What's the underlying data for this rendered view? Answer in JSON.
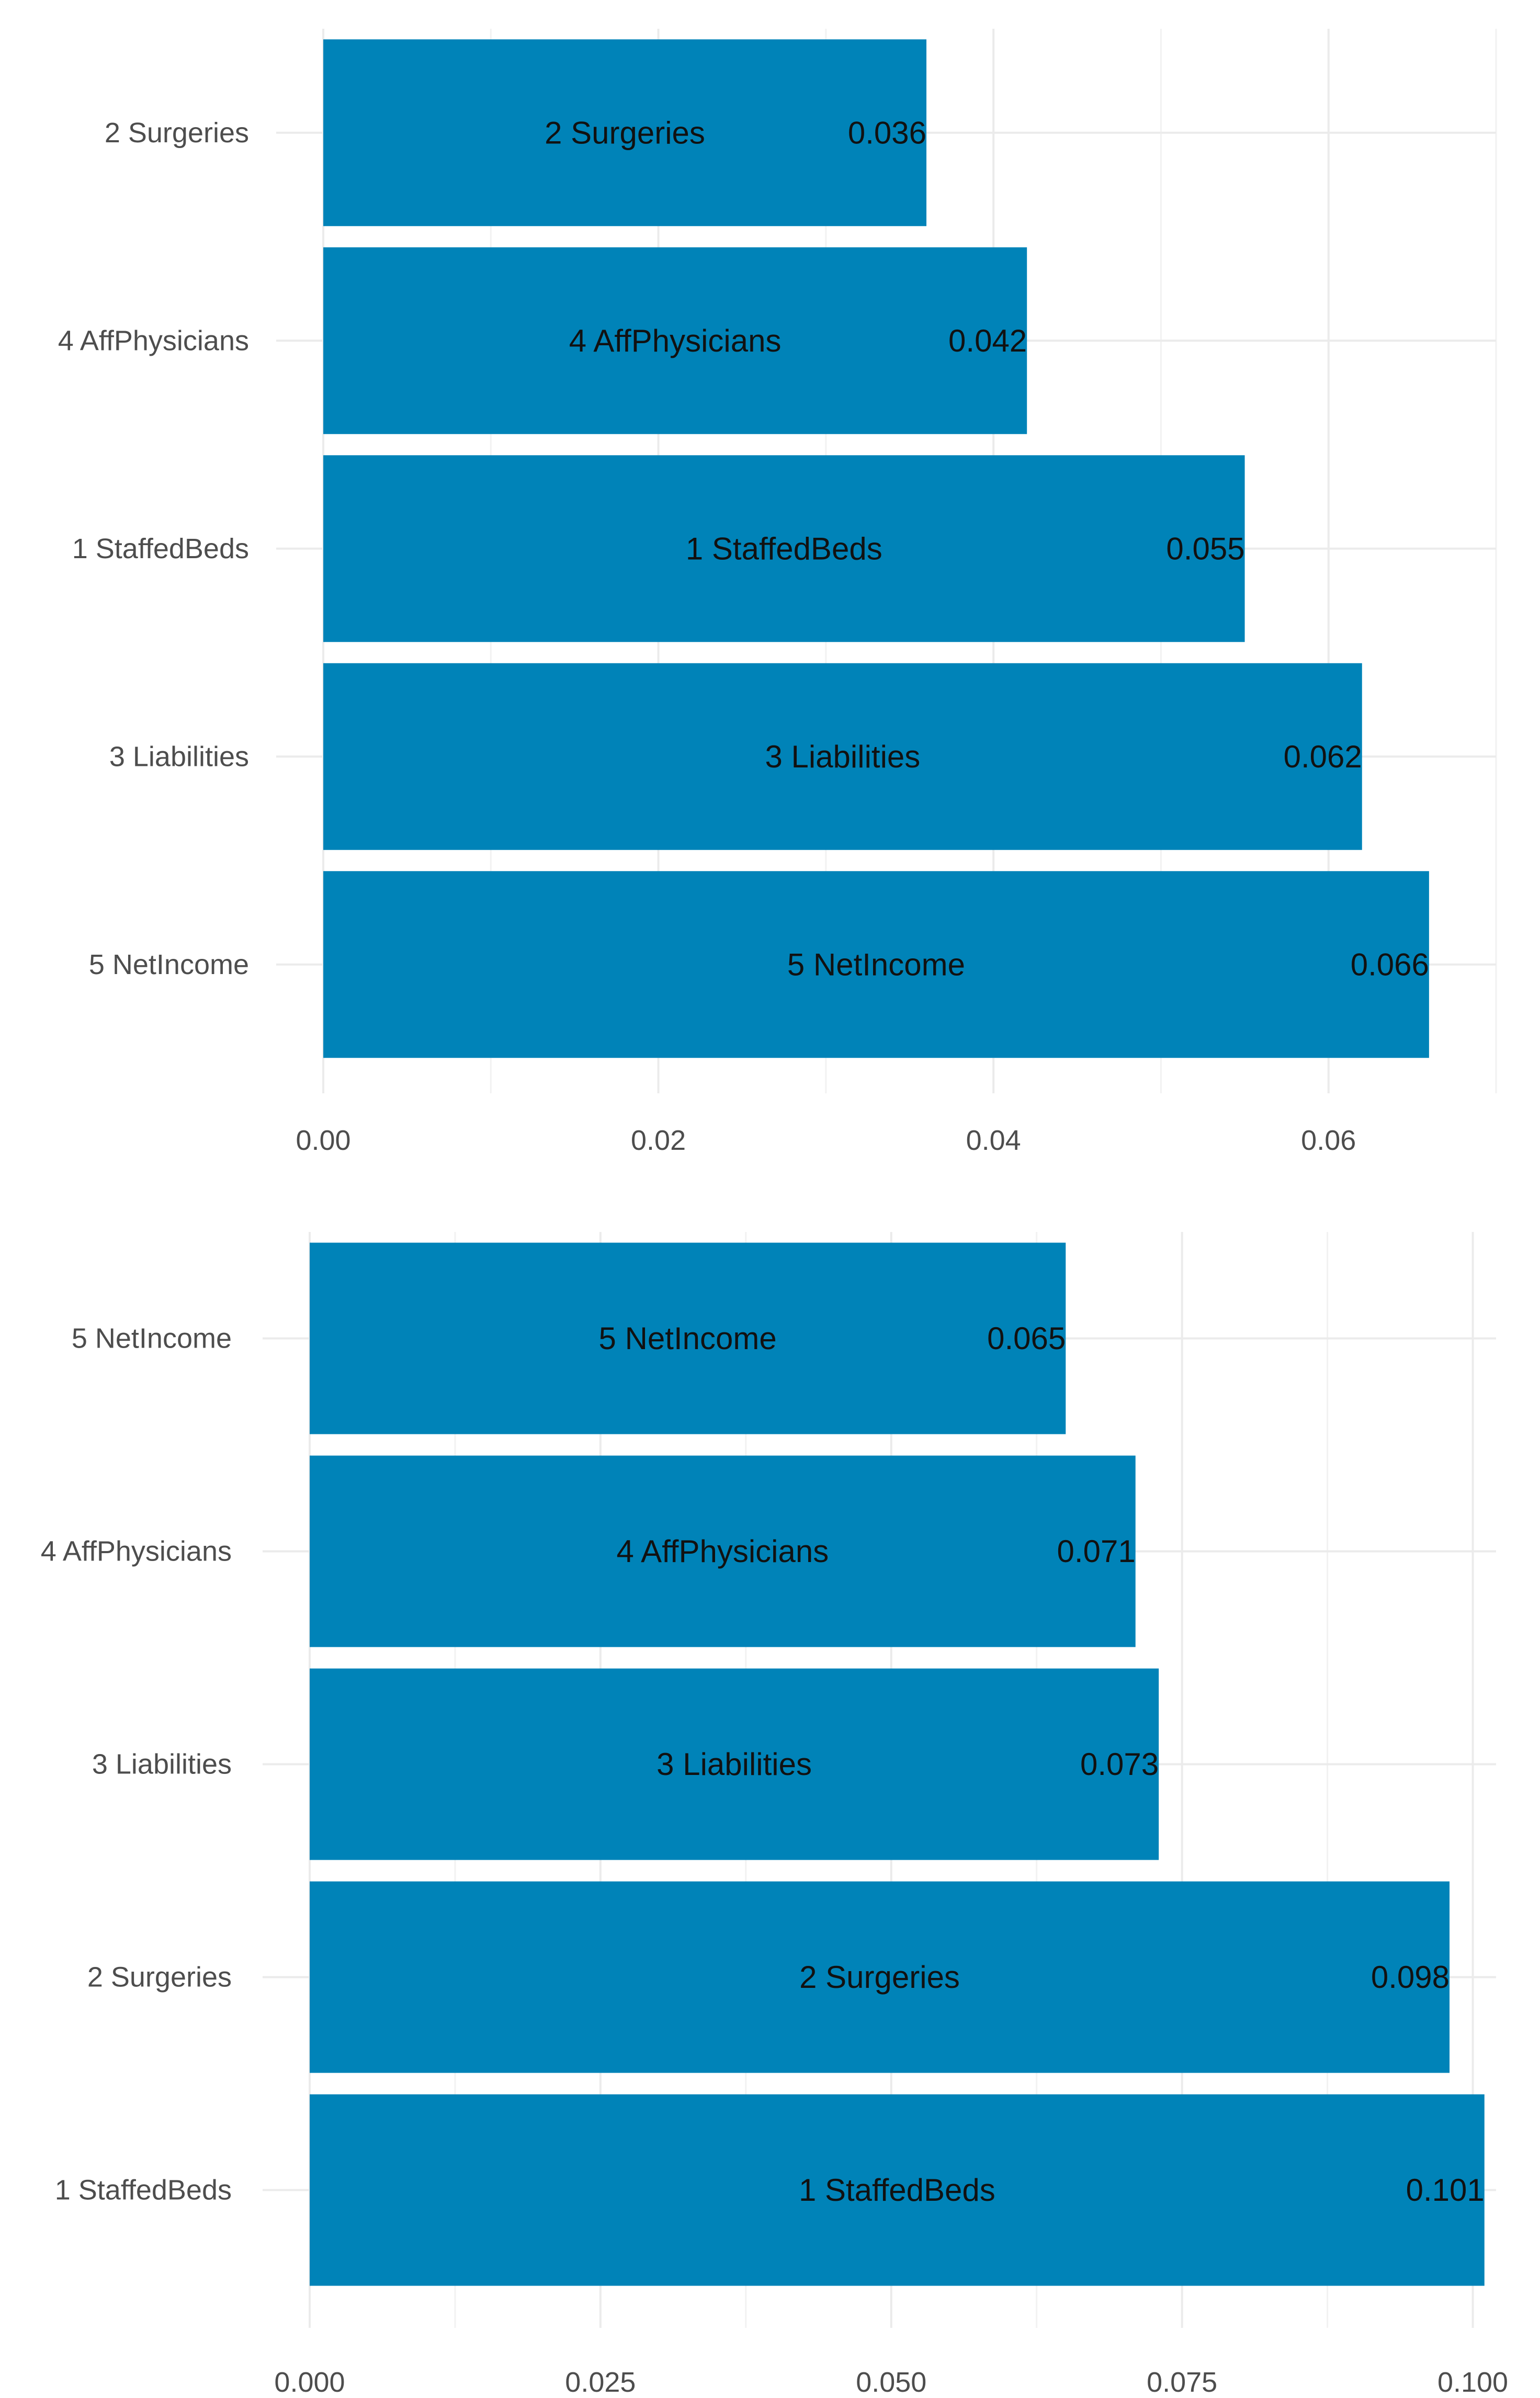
{
  "chart_data": [
    {
      "type": "bar",
      "orientation": "horizontal",
      "categories": [
        "2 Surgeries",
        "4 AffPhysicians",
        "1 StaffedBeds",
        "3 Liabilities",
        "5 NetIncome"
      ],
      "values": [
        0.036,
        0.042,
        0.055,
        0.062,
        0.066
      ],
      "value_labels": [
        "0.036",
        "0.042",
        "0.055",
        "0.062",
        "0.066"
      ],
      "xlim": [
        0,
        0.07
      ],
      "x_ticks": [
        0,
        0.02,
        0.04,
        0.06
      ],
      "x_tick_labels": [
        "0.00",
        "0.02",
        "0.04",
        "0.06"
      ],
      "title": "",
      "xlabel": "",
      "ylabel": "",
      "grid": true,
      "bar_color": "#0083b8"
    },
    {
      "type": "bar",
      "orientation": "horizontal",
      "categories": [
        "5 NetIncome",
        "4 AffPhysicians",
        "3 Liabilities",
        "2 Surgeries",
        "1 StaffedBeds"
      ],
      "values": [
        0.065,
        0.071,
        0.073,
        0.098,
        0.101
      ],
      "value_labels": [
        "0.065",
        "0.071",
        "0.073",
        "0.098",
        "0.101"
      ],
      "xlim": [
        0,
        0.102
      ],
      "x_ticks": [
        0,
        0.025,
        0.05,
        0.075,
        0.1
      ],
      "x_tick_labels": [
        "0.000",
        "0.025",
        "0.050",
        "0.075",
        "0.100"
      ],
      "title": "",
      "xlabel": "",
      "ylabel": "",
      "grid": true,
      "bar_color": "#0083b8"
    }
  ]
}
